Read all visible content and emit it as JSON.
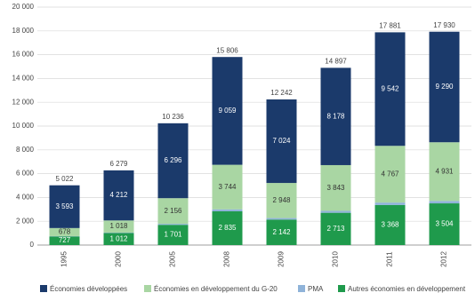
{
  "chart_data": {
    "type": "stacked-bar",
    "categories": [
      "1995",
      "2000",
      "2005",
      "2008",
      "2009",
      "2010",
      "2011",
      "2012"
    ],
    "series": [
      {
        "name": "Autres économies en développement",
        "color": "#1f9a4c",
        "label_color": "#ffffff",
        "values": [
          727,
          1012,
          1701,
          2835,
          2142,
          2713,
          3368,
          3504
        ],
        "value_labels": [
          "727",
          "1 012",
          "1 701",
          "2 835",
          "2 142",
          "2 713",
          "3 368",
          "3 504"
        ]
      },
      {
        "name": "PMA",
        "color": "#8fb3d9",
        "values": [
          24,
          37,
          83,
          168,
          128,
          163,
          204,
          205
        ]
      },
      {
        "name": "Économies en développement du G-20",
        "color": "#a9d6a3",
        "label_color": "#333333",
        "values": [
          678,
          1018,
          2156,
          3744,
          2948,
          3843,
          4767,
          4931
        ],
        "value_labels": [
          "678",
          "1 018",
          "2 156",
          "3 744",
          "2 948",
          "3 843",
          "4 767",
          "4 931"
        ]
      },
      {
        "name": "Économies développées",
        "color": "#1b3a6b",
        "label_color": "#ffffff",
        "values": [
          3593,
          4212,
          6296,
          9059,
          7024,
          8178,
          9542,
          9290
        ],
        "value_labels": [
          "3 593",
          "4 212",
          "6 296",
          "9 059",
          "7 024",
          "8 178",
          "9 542",
          "9 290"
        ]
      }
    ],
    "totals": [
      5022,
      6279,
      10236,
      15806,
      12242,
      14897,
      17881,
      17930
    ],
    "total_labels": [
      "5 022",
      "6 279",
      "10 236",
      "15 806",
      "12 242",
      "14 897",
      "17 881",
      "17 930"
    ],
    "legend_order": [
      3,
      2,
      1,
      0
    ],
    "ylim": [
      0,
      20000
    ],
    "yticks": [
      0,
      {
        "value": 2000,
        "label": "2 000"
      },
      {
        "value": 4000,
        "label": "4 000"
      },
      {
        "value": 6000,
        "label": "6 000"
      },
      {
        "value": 8000,
        "label": "8 000"
      },
      {
        "value": 10000,
        "label": "10 000"
      },
      {
        "value": 12000,
        "label": "12 000"
      },
      {
        "value": 14000,
        "label": "14 000"
      },
      {
        "value": 16000,
        "label": "16 000"
      },
      {
        "value": 18000,
        "label": "18 000"
      },
      {
        "value": 20000,
        "label": "20 000"
      }
    ],
    "grid": true
  }
}
